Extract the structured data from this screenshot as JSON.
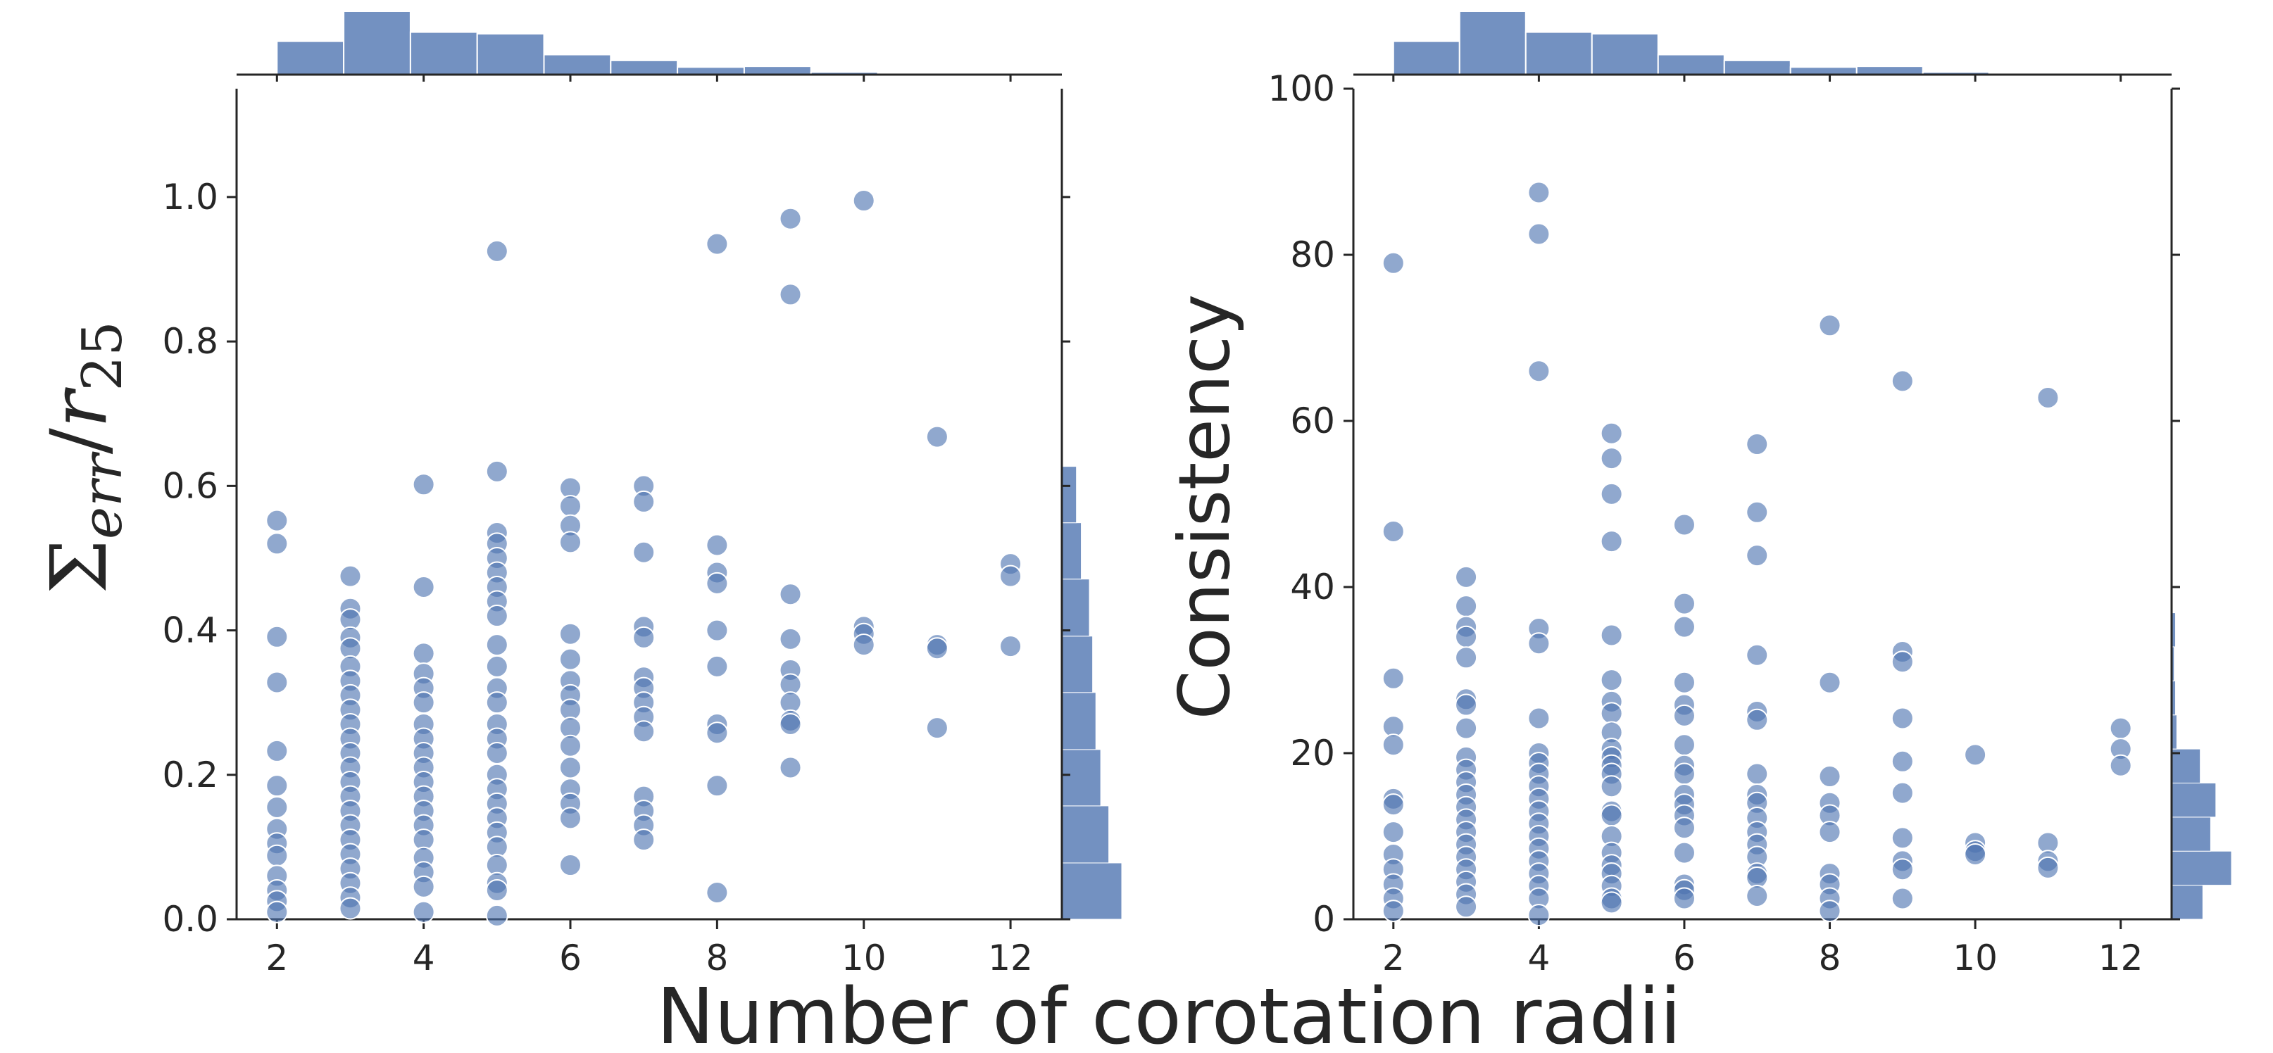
{
  "figure": {
    "xlabel": "Number of corotation radii"
  },
  "chart_data": [
    {
      "type": "scatter",
      "panel": "left",
      "ylabel": "Σ_err / r_25",
      "ylabel_parts": {
        "sigma": "Σ",
        "sub1": "err",
        "slash": "/",
        "r": "r",
        "sub2": "25"
      },
      "xlim": [
        1.45,
        12.7
      ],
      "ylim": [
        0.0,
        1.15
      ],
      "xticks": [
        2,
        4,
        6,
        8,
        10,
        12
      ],
      "yticks": [
        0.0,
        0.2,
        0.4,
        0.6,
        0.8,
        1.0
      ],
      "ytick_labels": [
        "0.0",
        "0.2",
        "0.4",
        "0.6",
        "0.8",
        "1.0"
      ],
      "color": "#4c72b0",
      "grid": false,
      "marginal_x": {
        "bin_edges": [
          2,
          2.91,
          3.82,
          4.73,
          5.64,
          6.55,
          7.46,
          8.37,
          9.28,
          10.19,
          11.1,
          12.0
        ],
        "counts": [
          40,
          76,
          51,
          49,
          24,
          17,
          9,
          10,
          3,
          2,
          1
        ]
      },
      "marginal_y": {
        "bin_edges": [
          0.0,
          0.078,
          0.157,
          0.235,
          0.314,
          0.392,
          0.471,
          0.549,
          0.627
        ],
        "counts": [
          37,
          29,
          24,
          21,
          19,
          17,
          12,
          9
        ]
      },
      "points": [
        {
          "x": 2,
          "y": 0.552
        },
        {
          "x": 2,
          "y": 0.52
        },
        {
          "x": 2,
          "y": 0.391
        },
        {
          "x": 2,
          "y": 0.328
        },
        {
          "x": 2,
          "y": 0.233
        },
        {
          "x": 2,
          "y": 0.185
        },
        {
          "x": 2,
          "y": 0.155
        },
        {
          "x": 2,
          "y": 0.125
        },
        {
          "x": 2,
          "y": 0.105
        },
        {
          "x": 2,
          "y": 0.088
        },
        {
          "x": 2,
          "y": 0.06
        },
        {
          "x": 2,
          "y": 0.04
        },
        {
          "x": 2,
          "y": 0.025
        },
        {
          "x": 2,
          "y": 0.01
        },
        {
          "x": 3,
          "y": 0.475
        },
        {
          "x": 3,
          "y": 0.43
        },
        {
          "x": 3,
          "y": 0.415
        },
        {
          "x": 3,
          "y": 0.39
        },
        {
          "x": 3,
          "y": 0.375
        },
        {
          "x": 3,
          "y": 0.35
        },
        {
          "x": 3,
          "y": 0.33
        },
        {
          "x": 3,
          "y": 0.31
        },
        {
          "x": 3,
          "y": 0.29
        },
        {
          "x": 3,
          "y": 0.27
        },
        {
          "x": 3,
          "y": 0.25
        },
        {
          "x": 3,
          "y": 0.23
        },
        {
          "x": 3,
          "y": 0.21
        },
        {
          "x": 3,
          "y": 0.19
        },
        {
          "x": 3,
          "y": 0.17
        },
        {
          "x": 3,
          "y": 0.15
        },
        {
          "x": 3,
          "y": 0.13
        },
        {
          "x": 3,
          "y": 0.11
        },
        {
          "x": 3,
          "y": 0.09
        },
        {
          "x": 3,
          "y": 0.07
        },
        {
          "x": 3,
          "y": 0.05
        },
        {
          "x": 3,
          "y": 0.03
        },
        {
          "x": 3,
          "y": 0.015
        },
        {
          "x": 4,
          "y": 0.602
        },
        {
          "x": 4,
          "y": 0.46
        },
        {
          "x": 4,
          "y": 0.368
        },
        {
          "x": 4,
          "y": 0.34
        },
        {
          "x": 4,
          "y": 0.32
        },
        {
          "x": 4,
          "y": 0.3
        },
        {
          "x": 4,
          "y": 0.27
        },
        {
          "x": 4,
          "y": 0.25
        },
        {
          "x": 4,
          "y": 0.23
        },
        {
          "x": 4,
          "y": 0.21
        },
        {
          "x": 4,
          "y": 0.19
        },
        {
          "x": 4,
          "y": 0.17
        },
        {
          "x": 4,
          "y": 0.15
        },
        {
          "x": 4,
          "y": 0.13
        },
        {
          "x": 4,
          "y": 0.11
        },
        {
          "x": 4,
          "y": 0.085
        },
        {
          "x": 4,
          "y": 0.065
        },
        {
          "x": 4,
          "y": 0.045
        },
        {
          "x": 4,
          "y": 0.01
        },
        {
          "x": 5,
          "y": 0.925
        },
        {
          "x": 5,
          "y": 0.62
        },
        {
          "x": 5,
          "y": 0.535
        },
        {
          "x": 5,
          "y": 0.52
        },
        {
          "x": 5,
          "y": 0.5
        },
        {
          "x": 5,
          "y": 0.48
        },
        {
          "x": 5,
          "y": 0.46
        },
        {
          "x": 5,
          "y": 0.44
        },
        {
          "x": 5,
          "y": 0.42
        },
        {
          "x": 5,
          "y": 0.38
        },
        {
          "x": 5,
          "y": 0.35
        },
        {
          "x": 5,
          "y": 0.32
        },
        {
          "x": 5,
          "y": 0.3
        },
        {
          "x": 5,
          "y": 0.27
        },
        {
          "x": 5,
          "y": 0.25
        },
        {
          "x": 5,
          "y": 0.23
        },
        {
          "x": 5,
          "y": 0.2
        },
        {
          "x": 5,
          "y": 0.18
        },
        {
          "x": 5,
          "y": 0.16
        },
        {
          "x": 5,
          "y": 0.14
        },
        {
          "x": 5,
          "y": 0.12
        },
        {
          "x": 5,
          "y": 0.1
        },
        {
          "x": 5,
          "y": 0.075
        },
        {
          "x": 5,
          "y": 0.05
        },
        {
          "x": 5,
          "y": 0.04
        },
        {
          "x": 5,
          "y": 0.005
        },
        {
          "x": 6,
          "y": 0.597
        },
        {
          "x": 6,
          "y": 0.572
        },
        {
          "x": 6,
          "y": 0.545
        },
        {
          "x": 6,
          "y": 0.522
        },
        {
          "x": 6,
          "y": 0.395
        },
        {
          "x": 6,
          "y": 0.36
        },
        {
          "x": 6,
          "y": 0.33
        },
        {
          "x": 6,
          "y": 0.31
        },
        {
          "x": 6,
          "y": 0.29
        },
        {
          "x": 6,
          "y": 0.265
        },
        {
          "x": 6,
          "y": 0.24
        },
        {
          "x": 6,
          "y": 0.21
        },
        {
          "x": 6,
          "y": 0.18
        },
        {
          "x": 6,
          "y": 0.16
        },
        {
          "x": 6,
          "y": 0.14
        },
        {
          "x": 6,
          "y": 0.075
        },
        {
          "x": 7,
          "y": 0.6
        },
        {
          "x": 7,
          "y": 0.578
        },
        {
          "x": 7,
          "y": 0.508
        },
        {
          "x": 7,
          "y": 0.405
        },
        {
          "x": 7,
          "y": 0.39
        },
        {
          "x": 7,
          "y": 0.335
        },
        {
          "x": 7,
          "y": 0.32
        },
        {
          "x": 7,
          "y": 0.3
        },
        {
          "x": 7,
          "y": 0.28
        },
        {
          "x": 7,
          "y": 0.26
        },
        {
          "x": 7,
          "y": 0.17
        },
        {
          "x": 7,
          "y": 0.15
        },
        {
          "x": 7,
          "y": 0.13
        },
        {
          "x": 7,
          "y": 0.11
        },
        {
          "x": 8,
          "y": 0.935
        },
        {
          "x": 8,
          "y": 0.518
        },
        {
          "x": 8,
          "y": 0.48
        },
        {
          "x": 8,
          "y": 0.465
        },
        {
          "x": 8,
          "y": 0.4
        },
        {
          "x": 8,
          "y": 0.35
        },
        {
          "x": 8,
          "y": 0.27
        },
        {
          "x": 8,
          "y": 0.258
        },
        {
          "x": 8,
          "y": 0.185
        },
        {
          "x": 8,
          "y": 0.037
        },
        {
          "x": 9,
          "y": 0.97
        },
        {
          "x": 9,
          "y": 0.865
        },
        {
          "x": 9,
          "y": 0.45
        },
        {
          "x": 9,
          "y": 0.388
        },
        {
          "x": 9,
          "y": 0.345
        },
        {
          "x": 9,
          "y": 0.325
        },
        {
          "x": 9,
          "y": 0.3
        },
        {
          "x": 9,
          "y": 0.275
        },
        {
          "x": 9,
          "y": 0.27
        },
        {
          "x": 9,
          "y": 0.21
        },
        {
          "x": 10,
          "y": 0.995
        },
        {
          "x": 10,
          "y": 0.405
        },
        {
          "x": 10,
          "y": 0.395
        },
        {
          "x": 10,
          "y": 0.38
        },
        {
          "x": 11,
          "y": 0.668
        },
        {
          "x": 11,
          "y": 0.38
        },
        {
          "x": 11,
          "y": 0.375
        },
        {
          "x": 11,
          "y": 0.265
        },
        {
          "x": 12,
          "y": 0.492
        },
        {
          "x": 12,
          "y": 0.475
        },
        {
          "x": 12,
          "y": 0.378
        }
      ]
    },
    {
      "type": "scatter",
      "panel": "right",
      "ylabel": "Consistency",
      "xlim": [
        1.45,
        12.7
      ],
      "ylim": [
        0,
        100
      ],
      "xticks": [
        2,
        4,
        6,
        8,
        10,
        12
      ],
      "yticks": [
        0,
        20,
        40,
        60,
        80,
        100
      ],
      "ytick_labels": [
        "0",
        "20",
        "40",
        "60",
        "80",
        "100"
      ],
      "color": "#4c72b0",
      "grid": false,
      "marginal_x": {
        "bin_edges": [
          2,
          2.91,
          3.82,
          4.73,
          5.64,
          6.55,
          7.46,
          8.37,
          9.28,
          10.19,
          11.1,
          12.0
        ],
        "counts": [
          40,
          76,
          51,
          49,
          24,
          17,
          9,
          10,
          3,
          2,
          1
        ]
      },
      "marginal_y": {
        "bin_edges": [
          0,
          4.1,
          8.2,
          12.3,
          16.4,
          20.5,
          24.6,
          28.7,
          32.8,
          36.9
        ],
        "counts": [
          24,
          46,
          30,
          34,
          22,
          4,
          3,
          2,
          3
        ]
      },
      "points": [
        {
          "x": 2,
          "y": 79
        },
        {
          "x": 2,
          "y": 46.7
        },
        {
          "x": 2,
          "y": 29
        },
        {
          "x": 2,
          "y": 23.2
        },
        {
          "x": 2,
          "y": 21
        },
        {
          "x": 2,
          "y": 14.5
        },
        {
          "x": 2,
          "y": 13.8
        },
        {
          "x": 2,
          "y": 10.5
        },
        {
          "x": 2,
          "y": 7.8
        },
        {
          "x": 2,
          "y": 6
        },
        {
          "x": 2,
          "y": 4.2
        },
        {
          "x": 2,
          "y": 2.5
        },
        {
          "x": 2,
          "y": 1
        },
        {
          "x": 3,
          "y": 41.2
        },
        {
          "x": 3,
          "y": 37.7
        },
        {
          "x": 3,
          "y": 35.2
        },
        {
          "x": 3,
          "y": 34
        },
        {
          "x": 3,
          "y": 31.5
        },
        {
          "x": 3,
          "y": 26.5
        },
        {
          "x": 3,
          "y": 25.8
        },
        {
          "x": 3,
          "y": 23
        },
        {
          "x": 3,
          "y": 19.5
        },
        {
          "x": 3,
          "y": 18
        },
        {
          "x": 3,
          "y": 16.5
        },
        {
          "x": 3,
          "y": 15
        },
        {
          "x": 3,
          "y": 13.5
        },
        {
          "x": 3,
          "y": 12
        },
        {
          "x": 3,
          "y": 10.5
        },
        {
          "x": 3,
          "y": 9
        },
        {
          "x": 3,
          "y": 7.5
        },
        {
          "x": 3,
          "y": 6
        },
        {
          "x": 3,
          "y": 4.5
        },
        {
          "x": 3,
          "y": 3
        },
        {
          "x": 3,
          "y": 1.5
        },
        {
          "x": 4,
          "y": 87.5
        },
        {
          "x": 4,
          "y": 82.5
        },
        {
          "x": 4,
          "y": 66
        },
        {
          "x": 4,
          "y": 35
        },
        {
          "x": 4,
          "y": 33.2
        },
        {
          "x": 4,
          "y": 24.2
        },
        {
          "x": 4,
          "y": 20
        },
        {
          "x": 4,
          "y": 18.8
        },
        {
          "x": 4,
          "y": 17.5
        },
        {
          "x": 4,
          "y": 16
        },
        {
          "x": 4,
          "y": 14.5
        },
        {
          "x": 4,
          "y": 13
        },
        {
          "x": 4,
          "y": 11.5
        },
        {
          "x": 4,
          "y": 10
        },
        {
          "x": 4,
          "y": 8.5
        },
        {
          "x": 4,
          "y": 7
        },
        {
          "x": 4,
          "y": 5.5
        },
        {
          "x": 4,
          "y": 4
        },
        {
          "x": 4,
          "y": 2.5
        },
        {
          "x": 4,
          "y": 0.5
        },
        {
          "x": 5,
          "y": 58.5
        },
        {
          "x": 5,
          "y": 55.5
        },
        {
          "x": 5,
          "y": 51.2
        },
        {
          "x": 5,
          "y": 45.5
        },
        {
          "x": 5,
          "y": 34.2
        },
        {
          "x": 5,
          "y": 28.8
        },
        {
          "x": 5,
          "y": 26.2
        },
        {
          "x": 5,
          "y": 24.8
        },
        {
          "x": 5,
          "y": 22.5
        },
        {
          "x": 5,
          "y": 20.5
        },
        {
          "x": 5,
          "y": 19.5
        },
        {
          "x": 5,
          "y": 18.5
        },
        {
          "x": 5,
          "y": 17.5
        },
        {
          "x": 5,
          "y": 16
        },
        {
          "x": 5,
          "y": 13
        },
        {
          "x": 5,
          "y": 12.5
        },
        {
          "x": 5,
          "y": 10
        },
        {
          "x": 5,
          "y": 8
        },
        {
          "x": 5,
          "y": 6.5
        },
        {
          "x": 5,
          "y": 5.5
        },
        {
          "x": 5,
          "y": 4
        },
        {
          "x": 5,
          "y": 2.5
        },
        {
          "x": 5,
          "y": 2
        },
        {
          "x": 6,
          "y": 47.5
        },
        {
          "x": 6,
          "y": 38
        },
        {
          "x": 6,
          "y": 35.2
        },
        {
          "x": 6,
          "y": 28.5
        },
        {
          "x": 6,
          "y": 25.8
        },
        {
          "x": 6,
          "y": 24.5
        },
        {
          "x": 6,
          "y": 21
        },
        {
          "x": 6,
          "y": 18.5
        },
        {
          "x": 6,
          "y": 17.5
        },
        {
          "x": 6,
          "y": 15
        },
        {
          "x": 6,
          "y": 13.8
        },
        {
          "x": 6,
          "y": 12.5
        },
        {
          "x": 6,
          "y": 11
        },
        {
          "x": 6,
          "y": 8
        },
        {
          "x": 6,
          "y": 4.2
        },
        {
          "x": 6,
          "y": 3.5
        },
        {
          "x": 6,
          "y": 2.5
        },
        {
          "x": 7,
          "y": 57.2
        },
        {
          "x": 7,
          "y": 49
        },
        {
          "x": 7,
          "y": 43.8
        },
        {
          "x": 7,
          "y": 31.8
        },
        {
          "x": 7,
          "y": 25
        },
        {
          "x": 7,
          "y": 24
        },
        {
          "x": 7,
          "y": 17.5
        },
        {
          "x": 7,
          "y": 15
        },
        {
          "x": 7,
          "y": 14
        },
        {
          "x": 7,
          "y": 12.2
        },
        {
          "x": 7,
          "y": 10.5
        },
        {
          "x": 7,
          "y": 9
        },
        {
          "x": 7,
          "y": 7.5
        },
        {
          "x": 7,
          "y": 5.5
        },
        {
          "x": 7,
          "y": 5
        },
        {
          "x": 7,
          "y": 2.8
        },
        {
          "x": 8,
          "y": 71.5
        },
        {
          "x": 8,
          "y": 28.5
        },
        {
          "x": 8,
          "y": 17.2
        },
        {
          "x": 8,
          "y": 14
        },
        {
          "x": 8,
          "y": 12.5
        },
        {
          "x": 8,
          "y": 10.5
        },
        {
          "x": 8,
          "y": 5.5
        },
        {
          "x": 8,
          "y": 4.2
        },
        {
          "x": 8,
          "y": 2.5
        },
        {
          "x": 8,
          "y": 1
        },
        {
          "x": 9,
          "y": 64.8
        },
        {
          "x": 9,
          "y": 32.2
        },
        {
          "x": 9,
          "y": 31
        },
        {
          "x": 9,
          "y": 24.2
        },
        {
          "x": 9,
          "y": 19
        },
        {
          "x": 9,
          "y": 15.2
        },
        {
          "x": 9,
          "y": 9.8
        },
        {
          "x": 9,
          "y": 7
        },
        {
          "x": 9,
          "y": 6
        },
        {
          "x": 9,
          "y": 2.5
        },
        {
          "x": 10,
          "y": 19.8
        },
        {
          "x": 10,
          "y": 9.2
        },
        {
          "x": 10,
          "y": 8.2
        },
        {
          "x": 10,
          "y": 7.8
        },
        {
          "x": 11,
          "y": 62.8
        },
        {
          "x": 11,
          "y": 9.2
        },
        {
          "x": 11,
          "y": 7
        },
        {
          "x": 11,
          "y": 6.2
        },
        {
          "x": 12,
          "y": 23
        },
        {
          "x": 12,
          "y": 20.5
        },
        {
          "x": 12,
          "y": 18.5
        }
      ]
    }
  ]
}
